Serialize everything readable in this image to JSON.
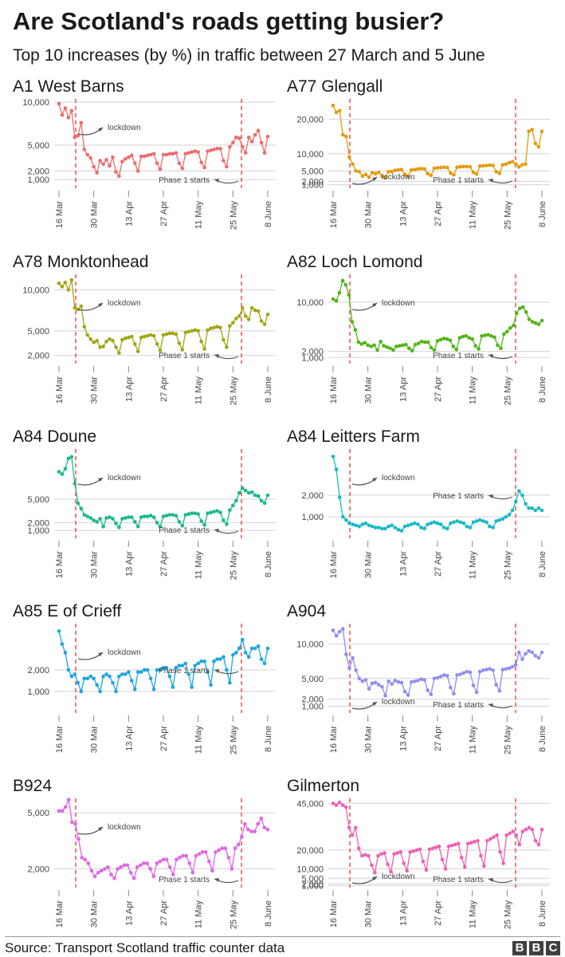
{
  "header": {
    "title": "Are Scotland's roads getting busier?",
    "subtitle": "Top 10 increases (by %) in traffic between 27 March and 5 June"
  },
  "footer": {
    "source": "Source: Transport Scotland traffic counter data",
    "logo": [
      "B",
      "B",
      "C"
    ]
  },
  "annotations": {
    "lockdown": "lockdown",
    "phase1": "Phase 1 starts"
  },
  "x_ticks": [
    "16 Mar",
    "30 Mar",
    "13 Apr",
    "27 Apr",
    "11 May",
    "25 May",
    "8 June"
  ],
  "colors": {
    "a1": "#ee6b6b",
    "a77": "#e39a0c",
    "a78": "#a2a512",
    "a82": "#4fb516",
    "a84d": "#18b98a",
    "a84l": "#16b9c5",
    "a85": "#1aa6e0",
    "a904": "#8f8ef0",
    "b924": "#e064e8",
    "gil": "#ef5fb3",
    "grid": "#d3d3d3",
    "marker": "#e8372d",
    "axis_text": "#444444",
    "arrow": "#555555"
  },
  "chart_data": [
    {
      "key": "a1",
      "type": "line",
      "title": "A1 West Barns",
      "yticks": [
        1000,
        2000,
        5000,
        10000
      ],
      "yticklabels": [
        "1,000",
        "2,000",
        "5,000",
        "10,000"
      ],
      "ylim": [
        0,
        10000
      ],
      "values": [
        9800,
        8500,
        9300,
        8200,
        9000,
        5900,
        6100,
        7600,
        4500,
        3900,
        3500,
        2500,
        1800,
        3200,
        2800,
        3300,
        2600,
        3600,
        1900,
        1400,
        3100,
        3400,
        3600,
        3800,
        2900,
        2000,
        3700,
        3700,
        3800,
        3900,
        4000,
        2900,
        2200,
        3900,
        3900,
        4000,
        4000,
        4100,
        2900,
        2300,
        4000,
        4100,
        4200,
        4300,
        4200,
        3000,
        2400,
        4300,
        4400,
        4500,
        4600,
        4600,
        3200,
        2500,
        4800,
        5300,
        5900,
        5800,
        4800,
        4100,
        5900,
        5400,
        6200,
        6700,
        5300,
        4100,
        6000
      ],
      "lockdown_label_at": "top",
      "phase1_label_at": "bottom"
    },
    {
      "key": "a77",
      "type": "line",
      "title": "A77 Glengall",
      "yticks": [
        1000,
        2000,
        5000,
        10000,
        20000
      ],
      "yticklabels": [
        "1,000",
        "2,000",
        "5,000",
        "10,000",
        "20,000"
      ],
      "ylim": [
        0,
        25000
      ],
      "values": [
        24000,
        22000,
        22500,
        15500,
        15000,
        9000,
        7000,
        5000,
        4800,
        3500,
        4000,
        3200,
        4500,
        4200,
        4600,
        3500,
        3000,
        4800,
        4800,
        5200,
        5300,
        5400,
        4000,
        3500,
        5300,
        5400,
        5600,
        5700,
        5600,
        4200,
        3700,
        5800,
        5900,
        6000,
        6100,
        6000,
        4400,
        3900,
        6100,
        6200,
        6300,
        6300,
        6200,
        4600,
        4100,
        6400,
        6500,
        6600,
        6700,
        6600,
        4800,
        4300,
        6800,
        7000,
        7400,
        7700,
        7000,
        6200,
        6800,
        7000,
        16500,
        17000,
        13000,
        12000,
        16500
      ],
      "lockdown_label_at": "bottom",
      "phase1_label_at": "bottom"
    },
    {
      "key": "a78",
      "type": "line",
      "title": "A78 Monktonhead",
      "yticks": [
        2000,
        5000,
        10000
      ],
      "yticklabels": [
        "2,000",
        "5,000",
        "10,000"
      ],
      "ylim": [
        1000,
        11500
      ],
      "values": [
        10800,
        10400,
        10900,
        10000,
        11200,
        7800,
        7600,
        8000,
        5500,
        4500,
        4000,
        3600,
        3800,
        3000,
        3100,
        3700,
        4000,
        3800,
        3000,
        2300,
        3900,
        4100,
        4200,
        4300,
        3400,
        2500,
        4200,
        4300,
        4400,
        4500,
        4400,
        3400,
        2600,
        4500,
        4600,
        4700,
        4700,
        4600,
        3500,
        2700,
        4800,
        4900,
        5000,
        5100,
        5000,
        3700,
        2800,
        5100,
        5300,
        5400,
        5500,
        5400,
        3900,
        3000,
        5600,
        6000,
        6500,
        6800,
        7800,
        6800,
        6400,
        7800,
        7500,
        7400,
        6200,
        5800,
        7000
      ],
      "lockdown_label_at": "top",
      "phase1_label_at": "bottom"
    },
    {
      "key": "a82",
      "type": "line",
      "title": "A82 Loch Lomond",
      "yticks": [
        1000,
        2000,
        10000
      ],
      "yticklabels": [
        "1,000",
        "2,000",
        "10,000"
      ],
      "ylim": [
        0,
        14000
      ],
      "values": [
        10500,
        10200,
        11500,
        13500,
        12800,
        11200,
        6800,
        5500,
        3500,
        3200,
        3400,
        3000,
        2800,
        3000,
        2200,
        3600,
        2900,
        2700,
        2500,
        2200,
        2800,
        2900,
        3000,
        3100,
        2500,
        2100,
        3100,
        3300,
        3600,
        3500,
        3500,
        2600,
        2200,
        3700,
        3900,
        4100,
        4000,
        3800,
        2800,
        2300,
        4200,
        4400,
        4500,
        4200,
        4000,
        2900,
        2400,
        4500,
        4600,
        4700,
        4500,
        4300,
        3000,
        2500,
        4800,
        5200,
        5800,
        6200,
        8200,
        9000,
        9200,
        8400,
        7200,
        6800,
        6600,
        6400,
        7000
      ],
      "lockdown_label_at": "top",
      "phase1_label_at": "bottom"
    },
    {
      "key": "a84d",
      "type": "line",
      "title": "A84 Doune",
      "yticks": [
        1000,
        2000,
        5000
      ],
      "yticklabels": [
        "1,000",
        "2,000",
        "5,000"
      ],
      "ylim": [
        0,
        11000
      ],
      "values": [
        8500,
        8200,
        8900,
        10200,
        10400,
        7000,
        4500,
        3800,
        3000,
        2800,
        2600,
        2300,
        2100,
        2500,
        1500,
        2600,
        2700,
        2500,
        1900,
        1400,
        2500,
        2600,
        2700,
        2700,
        2100,
        1500,
        2700,
        2800,
        2800,
        2900,
        2700,
        2000,
        1500,
        2800,
        2900,
        3000,
        3000,
        2900,
        2100,
        1600,
        3000,
        3100,
        3200,
        3200,
        3100,
        2200,
        1700,
        3200,
        3300,
        3400,
        3500,
        3300,
        2300,
        1800,
        3600,
        4200,
        4800,
        5800,
        6400,
        6100,
        5800,
        5900,
        5500,
        5400,
        4800,
        4500,
        5500
      ],
      "lockdown_label_at": "top",
      "phase1_label_at": "bottom"
    },
    {
      "key": "a84l",
      "type": "line",
      "title": "A84 Leitters Farm",
      "yticks": [
        1000,
        2000
      ],
      "yticklabels": [
        "1,000",
        "2,000"
      ],
      "ylim": [
        0,
        4000
      ],
      "values": [
        3800,
        3200,
        1900,
        1000,
        850,
        700,
        650,
        600,
        550,
        650,
        700,
        600,
        550,
        500,
        500,
        450,
        450,
        550,
        600,
        500,
        400,
        350,
        550,
        600,
        650,
        700,
        650,
        500,
        450,
        650,
        700,
        750,
        700,
        650,
        500,
        450,
        700,
        750,
        800,
        750,
        700,
        550,
        500,
        750,
        800,
        850,
        800,
        750,
        550,
        500,
        800,
        850,
        900,
        1000,
        1100,
        1300,
        1700,
        2200,
        2000,
        1600,
        1400,
        1400,
        1300,
        1400,
        1300
      ],
      "lockdown_label_at": "top",
      "phase1_label_at": "top"
    },
    {
      "key": "a85",
      "type": "line",
      "title": "A85 E of Crieff",
      "yticks": [
        1000,
        2000
      ],
      "yticklabels": [
        "1,000",
        "2,000"
      ],
      "ylim": [
        0,
        4000
      ],
      "values": [
        3800,
        3200,
        2800,
        2000,
        1700,
        1800,
        1400,
        1000,
        1600,
        1600,
        1700,
        1600,
        1300,
        1000,
        1700,
        1800,
        1700,
        1400,
        1000,
        1700,
        1800,
        1800,
        1900,
        1500,
        1100,
        1900,
        1900,
        2000,
        2000,
        1600,
        1100,
        2000,
        2000,
        2100,
        2100,
        1700,
        1200,
        2100,
        2200,
        2200,
        2300,
        1800,
        1200,
        2200,
        2300,
        2400,
        2400,
        1900,
        1300,
        2400,
        2500,
        2500,
        2600,
        2000,
        1400,
        2700,
        2800,
        3000,
        3400,
        2800,
        2600,
        3000,
        3000,
        3100,
        2500,
        2300,
        3000
      ],
      "lockdown_label_at": "top",
      "phase1_label_at": "top"
    },
    {
      "key": "a904",
      "type": "line",
      "title": "A904",
      "yticks": [
        1000,
        2000,
        5000,
        10000
      ],
      "yticklabels": [
        "1,000",
        "2,000",
        "5,000",
        "10,000"
      ],
      "ylim": [
        0,
        12500
      ],
      "values": [
        12000,
        11200,
        11800,
        12200,
        8500,
        6500,
        8000,
        6200,
        5000,
        4600,
        4800,
        3500,
        4300,
        4400,
        4100,
        3800,
        2500,
        4600,
        4200,
        4700,
        4500,
        4400,
        3100,
        2600,
        4500,
        4600,
        4700,
        4900,
        4800,
        3300,
        2700,
        5000,
        5100,
        5300,
        5500,
        5400,
        3700,
        2800,
        5500,
        5600,
        5800,
        6000,
        5900,
        4000,
        3000,
        6000,
        6200,
        6300,
        6400,
        6200,
        4100,
        3200,
        6300,
        6400,
        6500,
        6700,
        7000,
        8800,
        7800,
        8600,
        9000,
        8800,
        8300,
        8000,
        8800
      ],
      "lockdown_label_at": "bottom",
      "phase1_label_at": "bottom"
    },
    {
      "key": "b924",
      "type": "line",
      "title": "B924",
      "yticks": [
        2000,
        5000
      ],
      "yticklabels": [
        "2,000",
        "5,000"
      ],
      "ylim": [
        1000,
        5600
      ],
      "values": [
        5100,
        5100,
        5300,
        5700,
        4500,
        4400,
        3600,
        2600,
        2500,
        2300,
        1900,
        1600,
        1800,
        1900,
        2000,
        2100,
        1700,
        1500,
        2000,
        2100,
        2200,
        2200,
        1800,
        1500,
        2100,
        2200,
        2300,
        2300,
        2000,
        1600,
        2300,
        2400,
        2500,
        2500,
        2100,
        1700,
        2500,
        2600,
        2700,
        2700,
        2300,
        1800,
        2700,
        2800,
        2900,
        2900,
        2400,
        1900,
        2900,
        3000,
        3100,
        3100,
        2600,
        2000,
        3100,
        3300,
        3700,
        4400,
        4100,
        4000,
        4000,
        4400,
        4700,
        4200,
        4100
      ],
      "lockdown_label_at": "top",
      "phase1_label_at": "bottom"
    },
    {
      "key": "gil",
      "type": "line",
      "title": "Gilmerton",
      "yticks": [
        1000,
        2000,
        5000,
        10000,
        20000,
        45000
      ],
      "yticklabels": [
        "1,000",
        "2,000",
        "5,000",
        "10,000",
        "20,000",
        "45,000"
      ],
      "ylim": [
        0,
        46000
      ],
      "values": [
        45000,
        44000,
        45500,
        44000,
        43000,
        32000,
        28000,
        32000,
        21000,
        17000,
        17500,
        17000,
        12000,
        8000,
        17000,
        18000,
        18500,
        12500,
        8500,
        18000,
        18500,
        19000,
        13000,
        9000,
        19000,
        19500,
        20000,
        20500,
        14000,
        9500,
        20500,
        21000,
        21500,
        22000,
        15000,
        10000,
        22000,
        22500,
        23000,
        23500,
        16000,
        11000,
        23500,
        24000,
        24500,
        25000,
        17000,
        11500,
        25000,
        26000,
        27000,
        28000,
        19000,
        13000,
        28000,
        29000,
        30000,
        28000,
        23000,
        30000,
        31000,
        32000,
        31000,
        25000,
        23000,
        31000
      ],
      "lockdown_label_at": "bottom",
      "phase1_label_at": "bottom"
    }
  ]
}
